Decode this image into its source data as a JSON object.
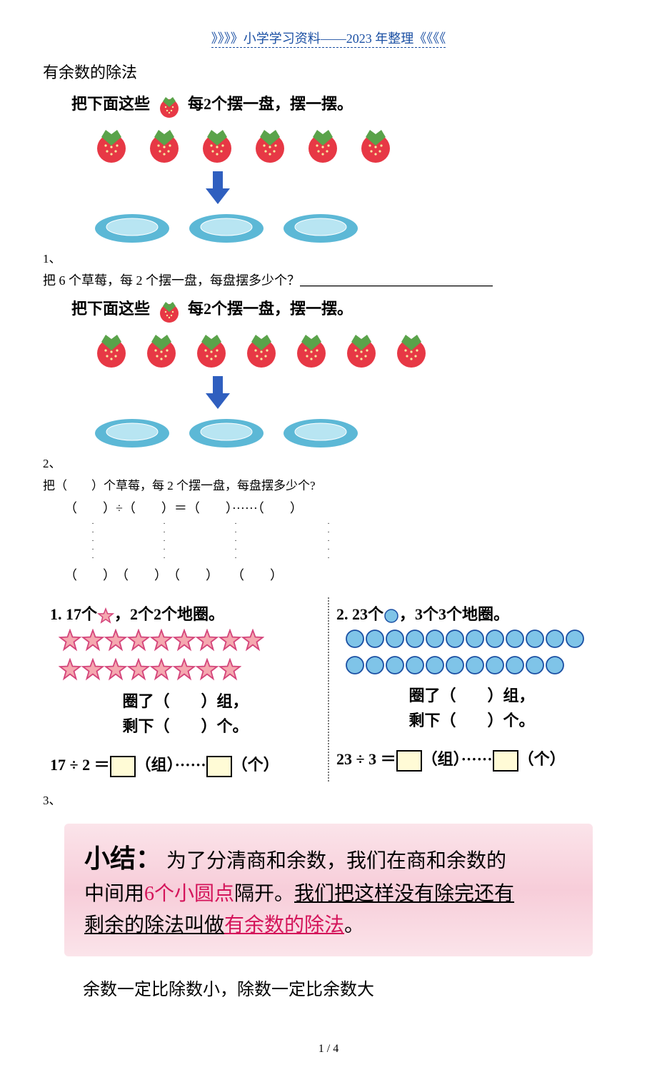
{
  "header": {
    "text": "》》》》小学学习资料——2023 年整理《《《《"
  },
  "title": "有余数的除法",
  "strawberry_colors": {
    "body": "#e73845",
    "leaf": "#5aa34a",
    "seed": "#f7e9a0"
  },
  "plate_colors": {
    "outer": "#5cb8d6",
    "inner": "#b8e5f2"
  },
  "arrow_color": "#2f5fbf",
  "q1": {
    "instruction_pre": "把下面这些",
    "instruction_post": "每2个摆一盘，摆一摆。",
    "strawberry_count": 6,
    "plate_count": 3,
    "label": "1、",
    "text": "把 6 个草莓，每 2 个摆一盘，每盘摆多少个？",
    "blank": "＿＿＿＿＿＿＿＿＿＿＿＿＿＿＿"
  },
  "q2": {
    "instruction_pre": "把下面这些",
    "instruction_post": "每2个摆一盘，摆一摆。",
    "strawberry_count": 7,
    "plate_count": 3,
    "label": "2、",
    "line1": "把（　　）个草莓，每 2 个摆一盘，每盘摆多少个?",
    "eq": "（　　）÷（　　）＝（　　）······（　　）",
    "eq_bot": "（　　）　（　　）　（　　）　　（　　）"
  },
  "q3": {
    "left": {
      "title_pre": "1. 17个",
      "title_post": "，2个2个地圈。",
      "star_rows": [
        9,
        8
      ],
      "t1": "圈了（　　）组，",
      "t2": "剩下（　　）个。",
      "eq_pre": "17 ÷ 2 ＝",
      "eq_mid": "（组）······",
      "eq_post": "（个）"
    },
    "right": {
      "title_pre": "2. 23个",
      "title_post": "，3个3个地圈。",
      "circ_rows": [
        12,
        11
      ],
      "t1": "圈了（　　）组，",
      "t2": "剩下（　　）个。",
      "eq_pre": "23 ÷ 3 ＝",
      "eq_mid": "（组）······",
      "eq_post": "（个）"
    },
    "star_colors": {
      "fill": "#f5a8b0",
      "stroke": "#d4447a"
    },
    "circle_colors": {
      "fill": "#7fc4e8",
      "stroke": "#1a4fa3"
    },
    "label": "3、"
  },
  "summary": {
    "head": "小结：",
    "l1a": "为了分清商和余数，我们在商和余数的",
    "l2a": "中间用",
    "l2b": "6个小圆点",
    "l2c": "隔开。",
    "l2d": "我们把这样没有除完还有",
    "l3a": "剩余的除法叫做",
    "l3b": "有余数的除法",
    "l3c": "。"
  },
  "footer_rule": "余数一定比除数小，除数一定比余数大",
  "page_num": "1 / 4"
}
